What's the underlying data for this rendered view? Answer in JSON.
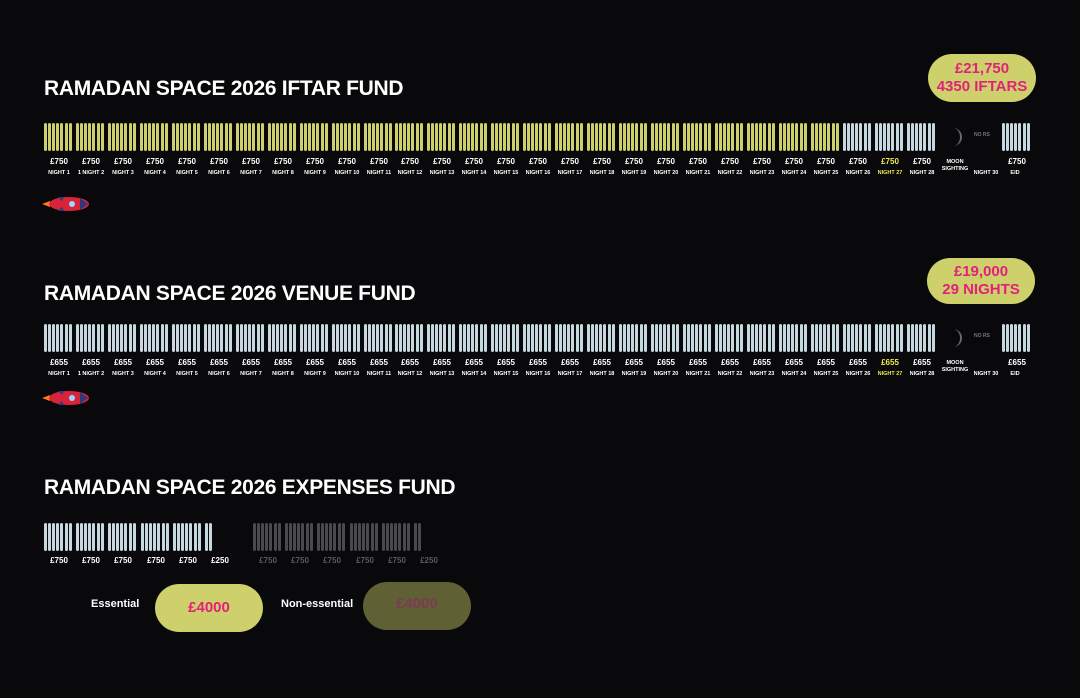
{
  "colors": {
    "fill": "#cdd06b",
    "empty": "#c7d7df",
    "dim": "#4a4a4e",
    "pink": "#e3207a",
    "yellow": "#f2e94e",
    "pill_dim": "#5f6034"
  },
  "iftar": {
    "title": "RAMADAN SPACE 2026 IFTAR FUND",
    "pill_amount": "£21,750",
    "pill_sub": "4350 IFTARS",
    "prices": [
      "£750",
      "£750",
      "£750",
      "£750",
      "£750",
      "£750",
      "£750",
      "£750",
      "£750",
      "£750",
      "£750",
      "£750",
      "£750",
      "£750",
      "£750",
      "£750",
      "£750",
      "£750",
      "£750",
      "£750",
      "£750",
      "£750",
      "£750",
      "£750",
      "£750",
      "£750",
      "£750",
      "£750"
    ],
    "filled_nights": 25,
    "eid_price": "£750"
  },
  "venue": {
    "title": "RAMADAN SPACE 2026 VENUE FUND",
    "pill_amount": "£19,000",
    "pill_sub": "29 NIGHTS",
    "prices": [
      "£655",
      "£655",
      "£655",
      "£655",
      "£655",
      "£655",
      "£655",
      "£655",
      "£655",
      "£655",
      "£655",
      "£655",
      "£655",
      "£655",
      "£655",
      "£655",
      "£655",
      "£655",
      "£655",
      "£655",
      "£655",
      "£655",
      "£655",
      "£655",
      "£655",
      "£655",
      "£655",
      "£655"
    ],
    "filled_nights": 0,
    "eid_price": "£655"
  },
  "nights": [
    "NIGHT 1",
    "1 NIGHT 2",
    "NIGHT 3",
    "NIGHT 4",
    "NIGHT 5",
    "NIGHT 6",
    "NIGHT 7",
    "NIGHT 8",
    "NIGHT 9",
    "NIGHT 10",
    "NIGHT 11",
    "NIGHT 12",
    "NIGHT 13",
    "NIGHT 14",
    "NIGHT 15",
    "NIGHT 16",
    "NIGHT 17",
    "NIGHT 18",
    "NIGHT 19",
    "NIGHT 20",
    "NIGHT 21",
    "NIGHT 22",
    "NIGHT 23",
    "NIGHT 24",
    "NIGHT 25",
    "NIGHT 26",
    "NIGHT 27",
    "NIGHT 28"
  ],
  "highlight_night": "NIGHT 27",
  "moon_label_1": "MOON",
  "moon_label_2": "SIGHTING",
  "no_rs": "NO RS",
  "night30": "NIGHT 30",
  "eid": "EID",
  "expenses": {
    "title": "RAMADAN SPACE 2026 EXPENSES FUND",
    "essential_prices": [
      "£750",
      "£750",
      "£750",
      "£750",
      "£750",
      "£250"
    ],
    "nonessential_prices": [
      "£750",
      "£750",
      "£750",
      "£750",
      "£750",
      "£250"
    ],
    "essential_label": "Essential",
    "essential_amount": "£4000",
    "nonessential_label": "Non-essential",
    "nonessential_amount": "£4000"
  }
}
